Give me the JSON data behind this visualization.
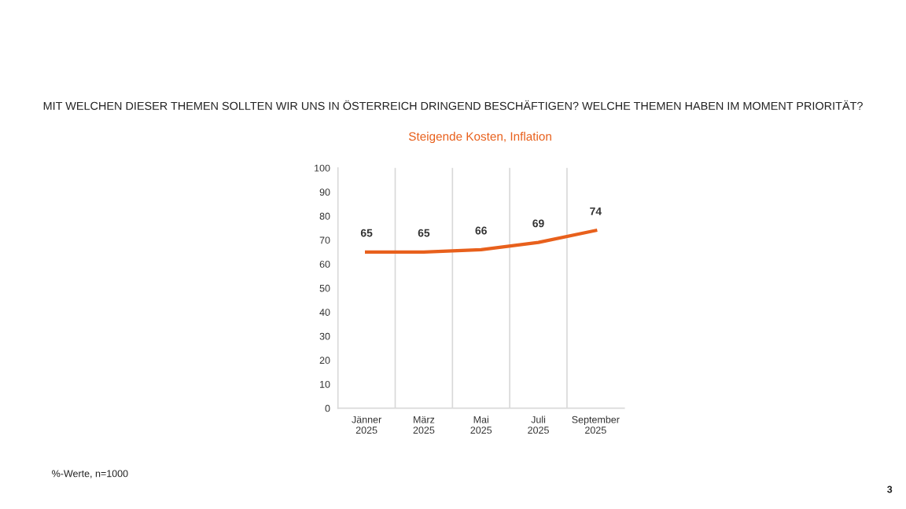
{
  "chart_data": {
    "type": "line",
    "title": "MIT WELCHEN DIESER THEMEN SOLLTEN WIR UNS IN ÖSTERREICH DRINGEND BESCHÄFTIGEN? WELCHE THEMEN HABEN IM MOMENT PRIORITÄT?",
    "subtitle": "Steigende Kosten, Inflation",
    "categories": [
      "Jänner\n2025",
      "März\n2025",
      "Mai\n2025",
      "Juli\n2025",
      "September\n2025"
    ],
    "series": [
      {
        "color": "#e8601c",
        "values": [
          65,
          65,
          66,
          69,
          74
        ]
      }
    ],
    "ylim": [
      0,
      100
    ],
    "yticks": [
      0,
      10,
      20,
      30,
      40,
      50,
      60,
      70,
      80,
      90,
      100
    ],
    "grid": "x",
    "data_labels": true,
    "legend": false,
    "marker": "none",
    "line_style": "solid",
    "annotations": [
      "%-Werte, n=1000",
      "3"
    ]
  }
}
